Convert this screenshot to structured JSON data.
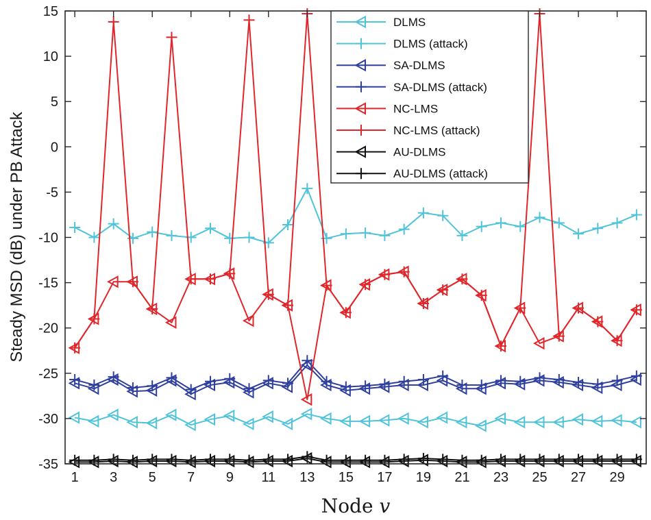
{
  "chart_data": {
    "type": "line",
    "title": "",
    "xlabel_text": "Node ",
    "xlabel_var": "v",
    "ylabel": "Steady  MSD (dB) under PB Attack",
    "xlim": [
      0.5,
      30.5
    ],
    "ylim": [
      -35,
      15
    ],
    "xticks": [
      1,
      3,
      5,
      7,
      9,
      11,
      13,
      15,
      17,
      19,
      21,
      23,
      25,
      27,
      29
    ],
    "yticks": [
      15,
      10,
      5,
      0,
      -5,
      -10,
      -15,
      -20,
      -25,
      -30,
      -35
    ],
    "ytick_labels": [
      "15",
      "10",
      "5",
      "0",
      "-5",
      "-10",
      "-15",
      "-20",
      "-25",
      "-30",
      "-35"
    ],
    "grid": false,
    "legend_position": "top-right",
    "x": [
      1,
      2,
      3,
      4,
      5,
      6,
      7,
      8,
      9,
      10,
      11,
      12,
      13,
      14,
      15,
      16,
      17,
      18,
      19,
      20,
      21,
      22,
      23,
      24,
      25,
      26,
      27,
      28,
      29,
      30
    ],
    "series": [
      {
        "name": "DLMS",
        "color": "#4fc3d9",
        "marker": "triangle-left",
        "values": [
          -29.9,
          -30.3,
          -29.6,
          -30.4,
          -30.5,
          -29.6,
          -30.7,
          -30.1,
          -29.7,
          -30.6,
          -29.8,
          -30.6,
          -29.5,
          -30.0,
          -30.3,
          -30.3,
          -30.2,
          -30.0,
          -30.4,
          -29.9,
          -30.4,
          -30.8,
          -30.0,
          -30.4,
          -30.4,
          -30.4,
          -30.1,
          -30.3,
          -30.2,
          -30.4
        ]
      },
      {
        "name": "DLMS (attack)",
        "color": "#4fc3d9",
        "marker": "plus",
        "values": [
          -8.9,
          -10.0,
          -8.5,
          -10.1,
          -9.4,
          -9.8,
          -10.0,
          -9.0,
          -10.1,
          -10.0,
          -10.6,
          -8.6,
          -4.6,
          -10.1,
          -9.6,
          -9.5,
          -9.8,
          -9.1,
          -7.3,
          -7.6,
          -9.8,
          -8.8,
          -8.4,
          -8.8,
          -7.8,
          -8.4,
          -9.6,
          -9.0,
          -8.4,
          -7.5
        ]
      },
      {
        "name": "SA-DLMS",
        "color": "#2e3f9e",
        "marker": "triangle-left",
        "values": [
          -26.1,
          -26.7,
          -25.7,
          -27.0,
          -26.9,
          -25.8,
          -27.3,
          -26.3,
          -26.0,
          -27.1,
          -26.1,
          -26.5,
          -24.1,
          -26.3,
          -26.9,
          -26.7,
          -26.5,
          -26.3,
          -26.3,
          -25.8,
          -26.7,
          -26.7,
          -26.1,
          -26.2,
          -25.8,
          -26.0,
          -26.3,
          -26.6,
          -26.3,
          -25.7
        ]
      },
      {
        "name": "SA-DLMS (attack)",
        "color": "#2e3f9e",
        "marker": "plus",
        "values": [
          -25.7,
          -26.3,
          -25.4,
          -26.6,
          -26.4,
          -25.5,
          -26.8,
          -25.9,
          -25.6,
          -26.7,
          -25.8,
          -26.1,
          -23.6,
          -25.9,
          -26.5,
          -26.4,
          -26.2,
          -25.9,
          -25.7,
          -25.3,
          -26.3,
          -26.3,
          -25.8,
          -25.9,
          -25.5,
          -25.7,
          -26.0,
          -26.2,
          -25.8,
          -25.3
        ]
      },
      {
        "name": "NC-LMS",
        "color": "#e0262a",
        "marker": "triangle-left",
        "values": [
          -22.2,
          -19.0,
          -14.9,
          -14.9,
          -17.9,
          -19.4,
          -14.6,
          -14.6,
          -14.0,
          -19.2,
          -16.3,
          -17.5,
          -27.9,
          -15.3,
          -18.3,
          -15.2,
          -14.1,
          -13.8,
          -17.3,
          -15.8,
          -14.6,
          -16.4,
          -22.0,
          -17.8,
          -21.7,
          -20.9,
          -17.8,
          -19.3,
          -21.4,
          -18.0
        ]
      },
      {
        "name": "NC-LMS (attack)",
        "color": "#e0262a",
        "marker": "plus",
        "values": [
          -22.2,
          -19.0,
          13.8,
          -14.9,
          -17.9,
          12.1,
          -14.6,
          -14.6,
          -14.0,
          14.0,
          -16.3,
          -17.5,
          14.7,
          -15.3,
          -18.3,
          -15.2,
          -14.1,
          -13.8,
          -17.3,
          -15.8,
          -14.6,
          -16.4,
          -22.0,
          -17.8,
          14.7,
          -20.9,
          -17.8,
          -19.3,
          -21.4,
          -18.0
        ]
      },
      {
        "name": "AU-DLMS",
        "color": "#111111",
        "marker": "triangle-left",
        "values": [
          -34.8,
          -34.8,
          -34.7,
          -34.8,
          -34.7,
          -34.7,
          -34.8,
          -34.7,
          -34.7,
          -34.8,
          -34.7,
          -34.7,
          -34.4,
          -34.8,
          -34.8,
          -34.8,
          -34.8,
          -34.7,
          -34.6,
          -34.7,
          -34.8,
          -34.8,
          -34.7,
          -34.7,
          -34.7,
          -34.7,
          -34.7,
          -34.7,
          -34.7,
          -34.7
        ]
      },
      {
        "name": "AU-DLMS (attack)",
        "color": "#111111",
        "marker": "plus",
        "values": [
          -34.6,
          -34.6,
          -34.5,
          -34.6,
          -34.5,
          -34.5,
          -34.6,
          -34.5,
          -34.5,
          -34.6,
          -34.5,
          -34.5,
          -34.2,
          -34.6,
          -34.6,
          -34.6,
          -34.6,
          -34.5,
          -34.4,
          -34.5,
          -34.6,
          -34.6,
          -34.5,
          -34.5,
          -34.5,
          -34.5,
          -34.5,
          -34.5,
          -34.5,
          -34.5
        ]
      }
    ]
  }
}
